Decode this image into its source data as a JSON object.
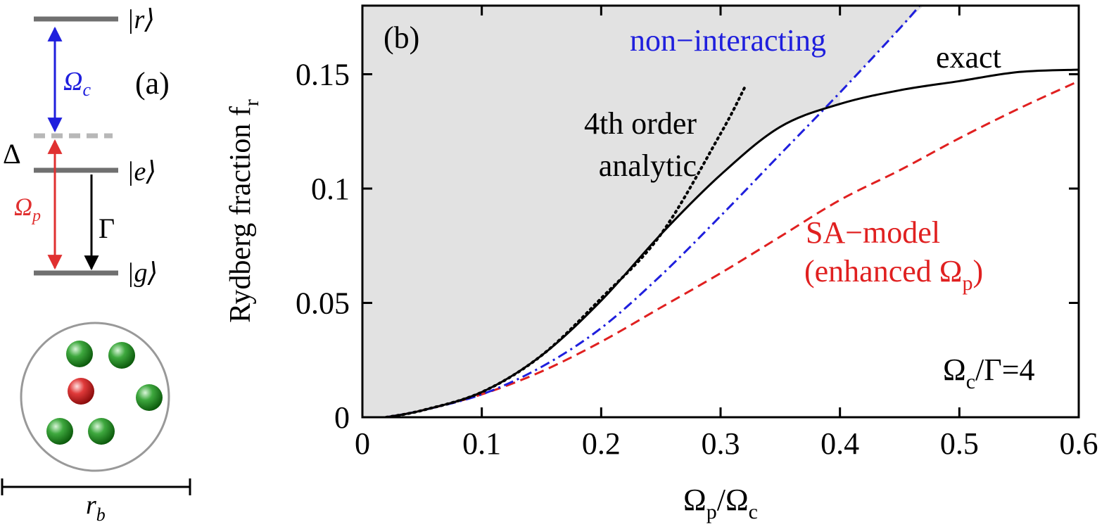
{
  "panel_a": {
    "label": "(a)",
    "levels": {
      "r": "|r⟩",
      "e": "|e⟩",
      "g": "|g⟩"
    },
    "delta": "Δ",
    "omega_c": {
      "symbol": "Ω",
      "sub": "c"
    },
    "omega_p": {
      "symbol": "Ω",
      "sub": "p"
    },
    "gamma": "Γ",
    "blockade_radius": {
      "symbol": "r",
      "sub": "b"
    },
    "colors": {
      "coupling": "#1f1fdd",
      "probe": "#e03030",
      "decay": "#000000",
      "level": "#707070",
      "atom_ground": "#2e9a2e",
      "atom_excited": "#d93030"
    }
  },
  "chart_data": {
    "type": "line",
    "panel_label": "(b)",
    "xlabel": {
      "main": "Ω",
      "sub1": "p",
      "mid": "/Ω",
      "sub2": "c"
    },
    "ylabel": {
      "main": "Rydberg fraction f",
      "sub": "r"
    },
    "xlim": [
      0,
      0.6
    ],
    "ylim": [
      0,
      0.18
    ],
    "xticks": [
      0,
      0.1,
      0.2,
      0.3,
      0.4,
      0.5,
      0.6
    ],
    "xtick_labels": [
      "0",
      "0.1",
      "0.2",
      "0.3",
      "0.4",
      "0.5",
      "0.6"
    ],
    "yticks": [
      0,
      0.05,
      0.1,
      0.15
    ],
    "ytick_labels": [
      "0",
      "0.05",
      "0.1",
      "0.15"
    ],
    "grid": false,
    "shaded_region": "area above exact curve up to the non-interacting curve and chart top",
    "series": [
      {
        "name": "exact",
        "color": "#000000",
        "style": "solid",
        "x": [
          0.02,
          0.05,
          0.1,
          0.15,
          0.2,
          0.25,
          0.3,
          0.35,
          0.4,
          0.45,
          0.5,
          0.55,
          0.6
        ],
        "y": [
          0.0,
          0.003,
          0.011,
          0.027,
          0.051,
          0.08,
          0.106,
          0.127,
          0.137,
          0.143,
          0.147,
          0.151,
          0.152
        ]
      },
      {
        "name": "non−interacting",
        "color": "#1f1fdd",
        "style": "dashdot",
        "x": [
          0.02,
          0.05,
          0.1,
          0.15,
          0.2,
          0.25,
          0.3,
          0.35,
          0.4,
          0.45,
          0.47
        ],
        "y": [
          0.0,
          0.003,
          0.01,
          0.022,
          0.039,
          0.062,
          0.088,
          0.115,
          0.142,
          0.17,
          0.182
        ]
      },
      {
        "name": "4th order analytic",
        "color": "#000000",
        "style": "dotted",
        "x": [
          0.02,
          0.05,
          0.1,
          0.15,
          0.2,
          0.25,
          0.3,
          0.32
        ],
        "y": [
          0.0,
          0.003,
          0.011,
          0.027,
          0.052,
          0.08,
          0.124,
          0.144
        ]
      },
      {
        "name": "SA−model (enhanced Ω_p)",
        "color": "#e02020",
        "style": "dashed",
        "x": [
          0.02,
          0.05,
          0.1,
          0.15,
          0.2,
          0.25,
          0.3,
          0.35,
          0.4,
          0.45,
          0.5,
          0.55,
          0.6
        ],
        "y": [
          0.0,
          0.003,
          0.01,
          0.02,
          0.033,
          0.048,
          0.063,
          0.079,
          0.095,
          0.108,
          0.122,
          0.135,
          0.147
        ]
      }
    ],
    "annotations": {
      "non_interacting": "non−interacting",
      "exact": "exact",
      "analytic_line1": "4th order",
      "analytic_line2": "analytic",
      "sa_line1": "SA−model",
      "sa_line2_main": "(enhanced Ω",
      "sa_line2_sub": "p",
      "sa_line2_close": ")",
      "ratio": {
        "main": "Ω",
        "sub": "c",
        "rest": "/Γ=4"
      }
    }
  }
}
